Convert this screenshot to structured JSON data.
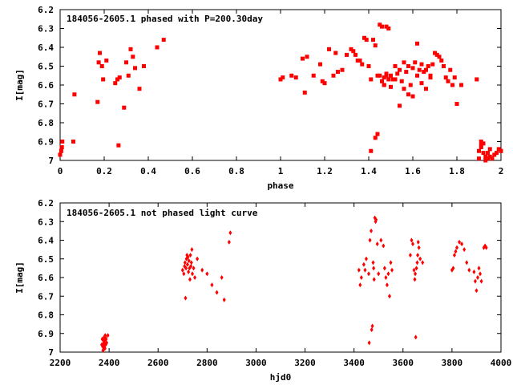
{
  "chart_data": [
    {
      "type": "scatter",
      "title": "184056-2605.1 phased with P=200.30day",
      "xlabel": "phase",
      "ylabel": "I[mag]",
      "xlim": [
        0,
        2
      ],
      "ylim": [
        6.2,
        7.0
      ],
      "y_inverted": true,
      "x_ticks": [
        "0",
        "0.2",
        "0.4",
        "0.6",
        "0.8",
        "1",
        "1.2",
        "1.4",
        "1.6",
        "1.8",
        "2"
      ],
      "y_ticks": [
        "6.2",
        "6.3",
        "6.4",
        "6.5",
        "6.6",
        "6.7",
        "6.8",
        "6.9",
        "7"
      ],
      "grid": false,
      "marker": "filled square",
      "color": "#ff0000",
      "x": [
        0.0,
        0.005,
        0.008,
        0.01,
        0.06,
        0.065,
        0.17,
        0.175,
        0.18,
        0.19,
        0.195,
        0.21,
        0.25,
        0.26,
        0.265,
        0.27,
        0.29,
        0.3,
        0.31,
        0.32,
        0.33,
        0.34,
        0.36,
        0.38,
        0.44,
        0.47,
        1.0,
        1.01,
        1.05,
        1.07,
        1.1,
        1.11,
        1.12,
        1.15,
        1.18,
        1.19,
        1.2,
        1.22,
        1.24,
        1.25,
        1.26,
        1.28,
        1.3,
        1.32,
        1.33,
        1.34,
        1.35,
        1.36,
        1.37,
        1.38,
        1.39,
        1.4,
        1.41,
        1.42,
        1.43,
        1.44,
        1.45,
        1.46,
        1.47,
        1.48,
        1.49,
        1.5,
        1.51,
        1.52,
        1.53,
        1.54,
        1.55,
        1.56,
        1.57,
        1.58,
        1.59,
        1.6,
        1.61,
        1.62,
        1.63,
        1.64,
        1.65,
        1.66,
        1.67,
        1.68,
        1.69,
        1.7,
        1.71,
        1.72,
        1.73,
        1.74,
        1.75,
        1.76,
        1.77,
        1.78,
        1.79,
        1.8,
        1.82,
        1.41,
        1.43,
        1.44,
        1.46,
        1.47,
        1.48,
        1.5,
        1.52,
        1.54,
        1.56,
        1.58,
        1.6,
        1.62,
        1.64,
        1.66,
        1.68,
        1.45,
        1.46,
        1.47,
        1.48,
        1.49,
        1.89,
        1.9,
        1.91,
        1.92,
        1.93,
        1.94,
        1.95,
        1.96,
        1.97,
        1.99,
        2.0,
        1.91,
        1.93,
        1.95,
        1.98,
        2.0,
        1.92,
        1.94,
        1.9,
        1.91
      ],
      "y": [
        6.97,
        6.95,
        6.93,
        6.9,
        6.9,
        6.65,
        6.69,
        6.48,
        6.43,
        6.5,
        6.57,
        6.47,
        6.59,
        6.57,
        6.92,
        6.56,
        6.72,
        6.48,
        6.55,
        6.41,
        6.45,
        6.51,
        6.62,
        6.5,
        6.4,
        6.36,
        6.57,
        6.56,
        6.55,
        6.56,
        6.46,
        6.64,
        6.45,
        6.55,
        6.49,
        6.58,
        6.59,
        6.41,
        6.55,
        6.43,
        6.53,
        6.52,
        6.44,
        6.41,
        6.42,
        6.44,
        6.47,
        6.47,
        6.49,
        6.35,
        6.36,
        6.5,
        6.57,
        6.36,
        6.39,
        6.55,
        6.28,
        6.29,
        6.56,
        6.29,
        6.3,
        6.55,
        6.57,
        6.5,
        6.54,
        6.52,
        6.58,
        6.48,
        6.53,
        6.5,
        6.6,
        6.51,
        6.48,
        6.38,
        6.52,
        6.49,
        6.53,
        6.52,
        6.5,
        6.55,
        6.49,
        6.43,
        6.44,
        6.45,
        6.47,
        6.5,
        6.56,
        6.58,
        6.52,
        6.6,
        6.56,
        6.7,
        6.6,
        6.95,
        6.88,
        6.86,
        6.58,
        6.6,
        6.55,
        6.61,
        6.57,
        6.71,
        6.62,
        6.65,
        6.66,
        6.55,
        6.59,
        6.62,
        6.56,
        6.55,
        6.58,
        6.6,
        6.54,
        6.57,
        6.57,
        6.95,
        6.92,
        6.96,
        6.98,
        6.99,
        6.94,
        6.99,
        6.97,
        6.94,
        6.95,
        6.93,
        7.0,
        6.98,
        6.96,
        6.95,
        6.91,
        6.96,
        6.99,
        6.9
      ]
    },
    {
      "type": "scatter",
      "title": "184056-2605.1 not phased light curve",
      "xlabel": "hjd0",
      "ylabel": "I[mag]",
      "xlim": [
        2200,
        4000
      ],
      "ylim": [
        6.2,
        7.0
      ],
      "y_inverted": true,
      "x_ticks": [
        "2200",
        "2400",
        "2600",
        "2800",
        "3000",
        "3200",
        "3400",
        "3600",
        "3800",
        "4000"
      ],
      "y_ticks": [
        "6.2",
        "6.3",
        "6.4",
        "6.5",
        "6.6",
        "6.7",
        "6.8",
        "6.9",
        "7"
      ],
      "grid": false,
      "marker": "filled diamond",
      "color": "#ff0000",
      "x": [
        2370,
        2372,
        2374,
        2376,
        2378,
        2380,
        2382,
        2384,
        2386,
        2388,
        2390,
        2375,
        2377,
        2379,
        2381,
        2383,
        2385,
        2395,
        2700,
        2705,
        2708,
        2710,
        2712,
        2714,
        2716,
        2718,
        2720,
        2722,
        2724,
        2726,
        2728,
        2730,
        2732,
        2734,
        2736,
        2738,
        2740,
        2745,
        2750,
        2760,
        2780,
        2800,
        2820,
        2840,
        2860,
        2870,
        2890,
        2895,
        3420,
        3425,
        3430,
        3440,
        3445,
        3450,
        3460,
        3462,
        3465,
        3470,
        3472,
        3475,
        3478,
        3480,
        3482,
        3485,
        3488,
        3490,
        3495,
        3500,
        3510,
        3520,
        3525,
        3530,
        3535,
        3540,
        3545,
        3550,
        3555,
        3630,
        3635,
        3640,
        3645,
        3648,
        3650,
        3652,
        3655,
        3658,
        3660,
        3662,
        3665,
        3670,
        3680,
        3800,
        3805,
        3810,
        3815,
        3820,
        3830,
        3840,
        3850,
        3860,
        3870,
        3890,
        3895,
        3900,
        3905,
        3910,
        3915,
        3920,
        3930,
        3935,
        3940
      ],
      "y": [
        6.96,
        6.93,
        6.97,
        6.99,
        6.95,
        6.92,
        6.94,
        6.91,
        6.96,
        6.93,
        6.95,
        6.99,
        6.97,
        6.94,
        6.96,
        6.98,
        6.92,
        6.91,
        6.56,
        6.58,
        6.54,
        6.52,
        6.71,
        6.55,
        6.5,
        6.48,
        6.53,
        6.49,
        6.57,
        6.51,
        6.55,
        6.61,
        6.48,
        6.54,
        6.52,
        6.45,
        6.58,
        6.55,
        6.6,
        6.5,
        6.56,
        6.58,
        6.64,
        6.68,
        6.6,
        6.72,
        6.41,
        6.36,
        6.56,
        6.64,
        6.6,
        6.53,
        6.56,
        6.5,
        6.58,
        6.95,
        6.4,
        6.35,
        6.88,
        6.86,
        6.52,
        6.55,
        6.61,
        6.28,
        6.3,
        6.29,
        6.42,
        6.58,
        6.4,
        6.43,
        6.55,
        6.6,
        6.64,
        6.58,
        6.7,
        6.52,
        6.56,
        6.48,
        6.4,
        6.42,
        6.56,
        6.61,
        6.58,
        6.92,
        6.55,
        6.52,
        6.48,
        6.41,
        6.44,
        6.5,
        6.52,
        6.56,
        6.55,
        6.48,
        6.46,
        6.44,
        6.41,
        6.42,
        6.45,
        6.52,
        6.56,
        6.57,
        6.62,
        6.67,
        6.6,
        6.55,
        6.58,
        6.62,
        6.44,
        6.43,
        6.44
      ]
    }
  ]
}
